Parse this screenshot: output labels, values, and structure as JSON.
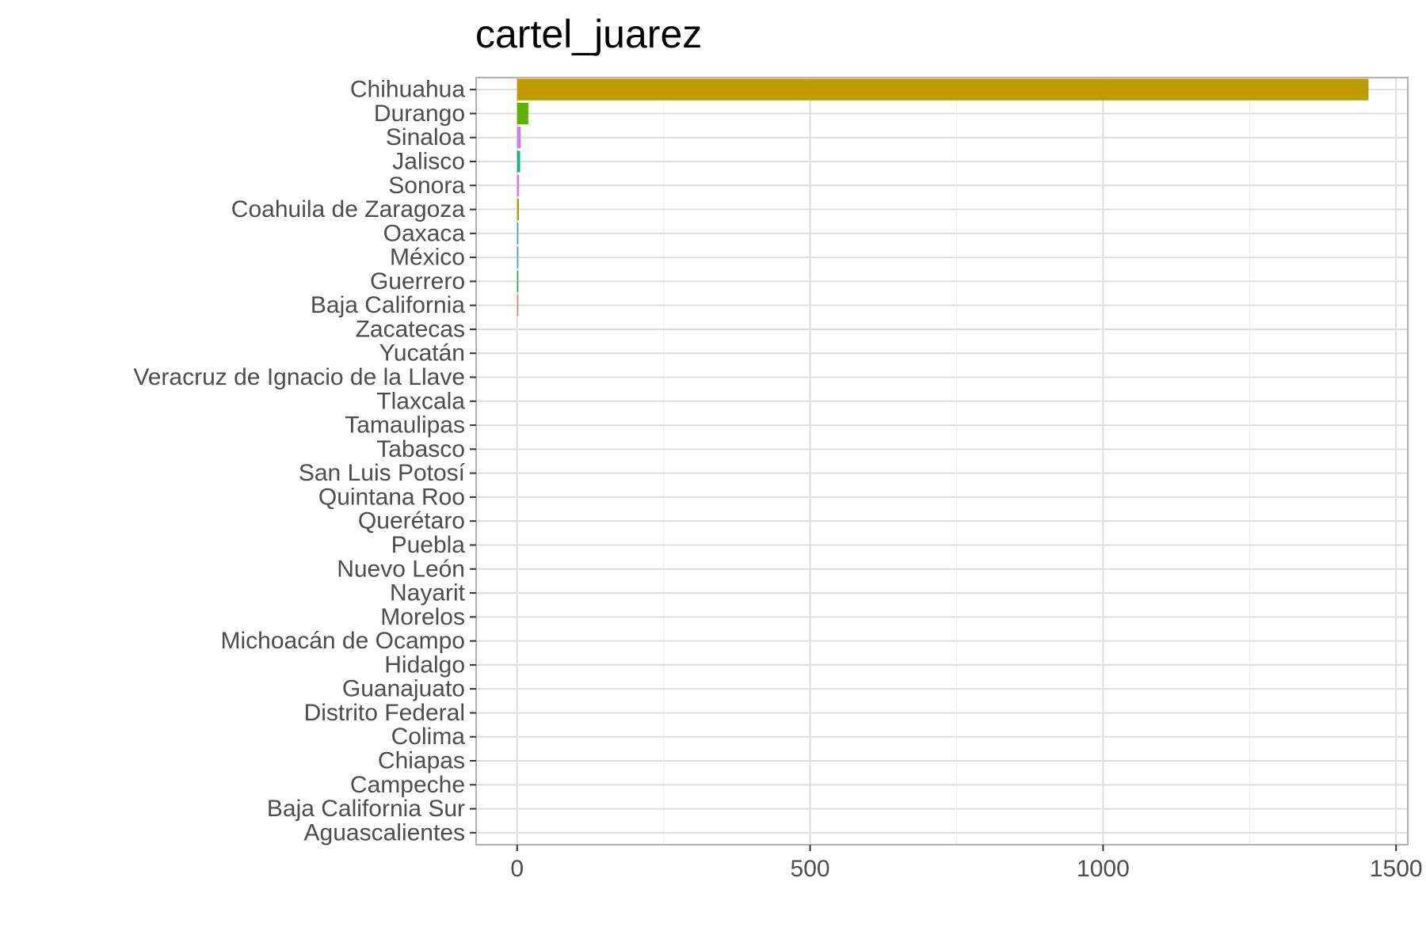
{
  "chart_data": {
    "type": "bar",
    "orientation": "horizontal",
    "title": "cartel_juarez",
    "xlabel": "",
    "ylabel": "",
    "xlim": [
      -70,
      1520
    ],
    "x_ticks": [
      0,
      500,
      1000,
      1500
    ],
    "grid": true,
    "legend": "none",
    "categories": [
      "Chihuahua",
      "Durango",
      "Sinaloa",
      "Jalisco",
      "Sonora",
      "Coahuila de Zaragoza",
      "Oaxaca",
      "México",
      "Guerrero",
      "Baja California",
      "Zacatecas",
      "Yucatán",
      "Veracruz de Ignacio de la Llave",
      "Tlaxcala",
      "Tamaulipas",
      "Tabasco",
      "San Luis Potosí",
      "Quintana Roo",
      "Querétaro",
      "Puebla",
      "Nuevo León",
      "Nayarit",
      "Morelos",
      "Michoacán de Ocampo",
      "Hidalgo",
      "Guanajuato",
      "Distrito Federal",
      "Colima",
      "Chiapas",
      "Campeche",
      "Baja California Sur",
      "Aguascalientes"
    ],
    "values": [
      1453,
      19,
      6,
      5,
      3,
      3,
      2,
      2,
      2,
      1,
      0,
      0,
      0,
      0,
      0,
      0,
      0,
      0,
      0,
      0,
      0,
      0,
      0,
      0,
      0,
      0,
      0,
      0,
      0,
      0,
      0,
      0
    ],
    "colors": [
      "#C09B00",
      "#5BB300",
      "#C77CFF",
      "#00BF7D",
      "#E76BF3",
      "#A3A500",
      "#00A9FF",
      "#00B0F6",
      "#00BA38",
      "#F8766D",
      "#FF62BC",
      "#FF6C91",
      "#FD61D1",
      "#D89000",
      "#9590FF",
      "#7CAE00",
      "#00BFC4",
      "#619CFF",
      "#E58700",
      "#39B600",
      "#00C1A3",
      "#00BCD8",
      "#DB72FB",
      "#F564E3",
      "#00B81F",
      "#ABA300",
      "#00C08B",
      "#EA8331",
      "#A58AFF",
      "#00ABFD",
      "#8AAB00",
      "#B79F00"
    ]
  }
}
